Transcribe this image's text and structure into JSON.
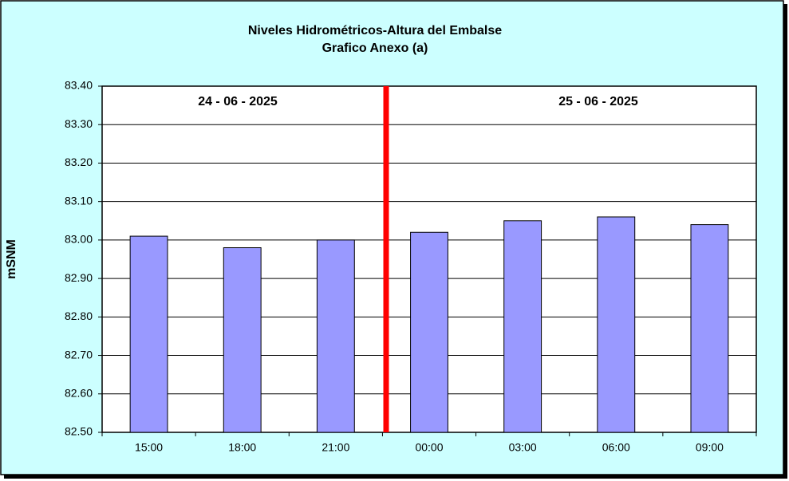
{
  "chart_data": {
    "type": "bar",
    "title": "Niveles Hidrométricos-Altura del Embalse",
    "subtitle": "Grafico Anexo (a)",
    "y_label": "mSNM",
    "annotations": [
      "24 - 06 - 2025",
      "25 - 06 - 2025"
    ],
    "categories": [
      "15:00",
      "18:00",
      "21:00",
      "00:00",
      "03:00",
      "06:00",
      "09:00"
    ],
    "values": [
      83.01,
      82.98,
      83.0,
      83.02,
      83.05,
      83.06,
      83.04
    ],
    "color": "#9999ff",
    "ylim": [
      82.5,
      83.4
    ],
    "yticks": [
      {
        "value": 82.5,
        "label": "82.50"
      },
      {
        "value": 82.6,
        "label": "82.60"
      },
      {
        "value": 82.7,
        "label": "82.70"
      },
      {
        "value": 82.8,
        "label": "82.80"
      },
      {
        "value": 82.9,
        "label": "82.90"
      },
      {
        "value": 83.0,
        "label": "83.00"
      },
      {
        "value": 83.1,
        "label": "83.10"
      },
      {
        "value": 83.2,
        "label": "83.20"
      },
      {
        "value": 83.3,
        "label": "83.30"
      },
      {
        "value": 83.4,
        "label": "83.40"
      }
    ],
    "grid": true
  }
}
